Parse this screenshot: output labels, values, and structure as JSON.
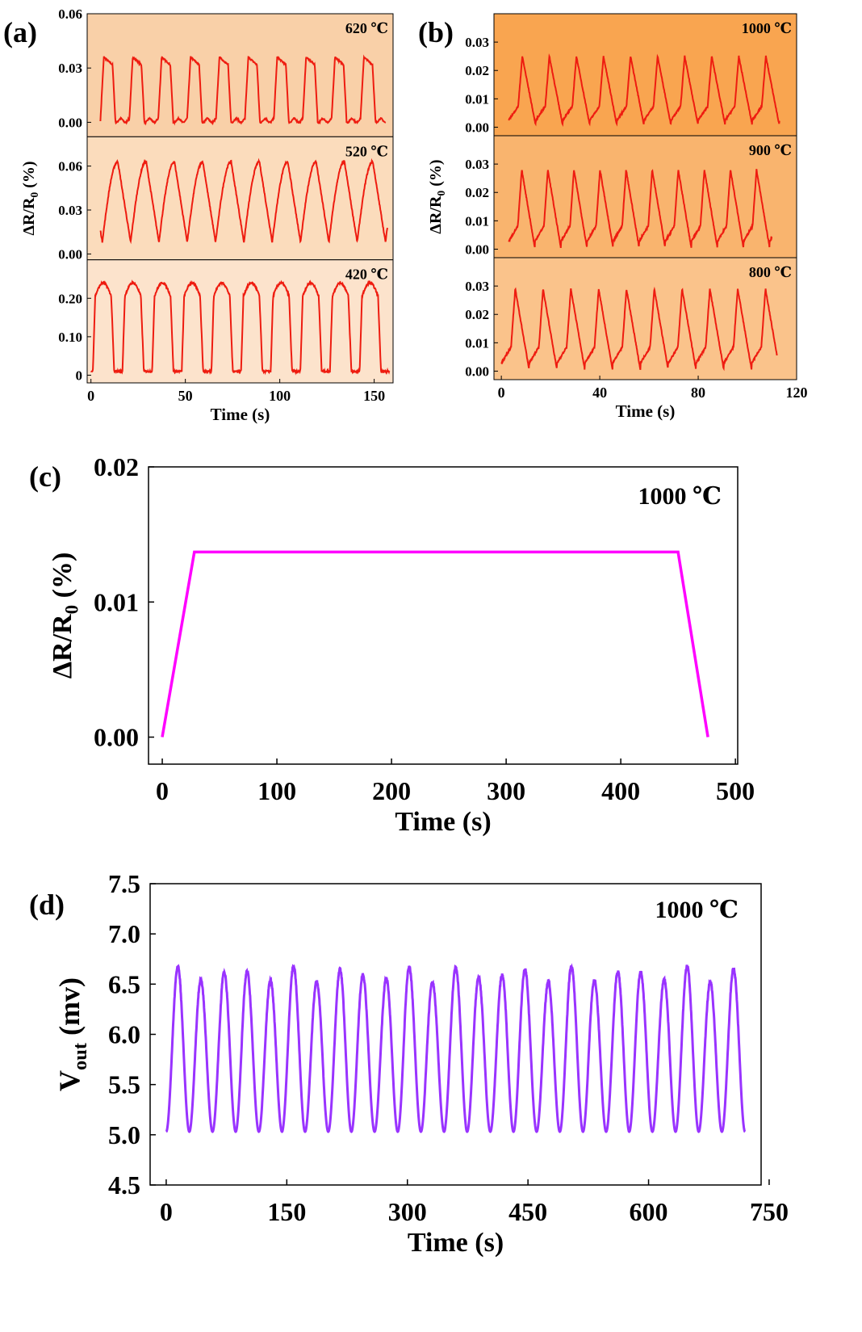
{
  "colors": {
    "trace_ab": "#ee1c10",
    "trace_c": "#ff00ff",
    "trace_d": "#9933ff",
    "bg_620": "#f9d0a8",
    "bg_520": "#fbdcbc",
    "bg_420": "#fce3cc",
    "bg_1000": "#f9a550",
    "bg_900": "#f9b46e",
    "bg_800": "#fac38b"
  },
  "chart_data": [
    {
      "panel": "(a)",
      "type": "line",
      "xlabel": "Time (s)",
      "ylabel": "ΔR/R0 (%)",
      "xlim": [
        -2,
        160
      ],
      "xticks": [
        "0",
        "50",
        "100",
        "150"
      ],
      "x_tick_values": [
        0,
        50,
        100,
        150
      ],
      "subplots": [
        {
          "id": "a-620",
          "label": "620 ℃",
          "ylim": [
            -0.008,
            0.06
          ],
          "yticks": [
            "0.00",
            "0.03",
            "0.06"
          ],
          "ytick_values": [
            0,
            0.03,
            0.06
          ],
          "start": 5,
          "end": 156,
          "period": 15.3,
          "peak": 0.036,
          "base": 0.001,
          "shape": "square",
          "x_start": 5
        },
        {
          "id": "a-520",
          "label": "520 ℃",
          "ylim": [
            -0.004,
            0.08
          ],
          "yticks": [
            "0.00",
            "0.03",
            "0.06"
          ],
          "ytick_values": [
            0,
            0.03,
            0.06
          ],
          "start": 5,
          "end": 157,
          "period": 15.0,
          "peak": 0.063,
          "base": 0.008,
          "shape": "saw",
          "x_start": 6
        },
        {
          "id": "a-420",
          "label": "420 ℃",
          "ylim": [
            -0.02,
            0.3
          ],
          "yticks": [
            "0",
            "0.10",
            "0.20"
          ],
          "ytick_values": [
            0,
            0.1,
            0.2
          ],
          "start": 0,
          "end": 158,
          "period": 15.7,
          "peak": 0.24,
          "base": 0.01,
          "shape": "round",
          "x_start": 1
        }
      ]
    },
    {
      "panel": "(b)",
      "type": "line",
      "xlabel": "Time (s)",
      "ylabel": "ΔR/R0 (%)",
      "xlim": [
        -3,
        120
      ],
      "xticks": [
        "0",
        "40",
        "80",
        "120"
      ],
      "x_tick_values": [
        0,
        40,
        80,
        120
      ],
      "subplots": [
        {
          "id": "b-1000",
          "label": "1000 ℃",
          "ylim": [
            -0.003,
            0.04
          ],
          "yticks": [
            "0.00",
            "0.01",
            "0.02",
            "0.03"
          ],
          "ytick_values": [
            0,
            0.01,
            0.02,
            0.03
          ],
          "start": 3,
          "end": 113,
          "period": 11.0,
          "peak": 0.025,
          "base": 0.0005,
          "shape": "spike",
          "x_start": 3
        },
        {
          "id": "b-900",
          "label": "900 ℃",
          "ylim": [
            -0.003,
            0.04
          ],
          "yticks": [
            "0.00",
            "0.01",
            "0.02",
            "0.03"
          ],
          "ytick_values": [
            0,
            0.01,
            0.02,
            0.03
          ],
          "start": 3,
          "end": 110,
          "period": 10.6,
          "peak": 0.028,
          "base": 0.0005,
          "shape": "spike",
          "x_start": 3
        },
        {
          "id": "b-800",
          "label": "800 ℃",
          "ylim": [
            -0.003,
            0.04
          ],
          "yticks": [
            "0.00",
            "0.01",
            "0.02",
            "0.03"
          ],
          "ytick_values": [
            0,
            0.01,
            0.02,
            0.03
          ],
          "start": 0,
          "end": 112,
          "period": 11.3,
          "peak": 0.029,
          "base": 0.0005,
          "shape": "spike",
          "x_start": 0
        }
      ]
    },
    {
      "panel": "(c)",
      "type": "line",
      "xlabel": "Time (s)",
      "ylabel": "ΔR/R0 (%)",
      "label": "1000 ℃",
      "xlim": [
        -12,
        502
      ],
      "ylim": [
        -0.002,
        0.02
      ],
      "xticks": [
        "0",
        "100",
        "200",
        "300",
        "400",
        "500"
      ],
      "x_tick_values": [
        0,
        100,
        200,
        300,
        400,
        500
      ],
      "yticks": [
        "0.00",
        "0.01",
        "0.02"
      ],
      "ytick_values": [
        0,
        0.01,
        0.02
      ],
      "x": [
        0,
        28,
        450,
        476
      ],
      "y": [
        0,
        0.0137,
        0.0137,
        0
      ]
    },
    {
      "panel": "(d)",
      "type": "line",
      "xlabel": "Time (s)",
      "ylabel": "Vout (mv)",
      "label": "1000 ℃",
      "xlim": [
        -20,
        740
      ],
      "ylim": [
        4.5,
        7.5
      ],
      "xticks": [
        "0",
        "150",
        "300",
        "450",
        "600",
        "750"
      ],
      "x_tick_values": [
        0,
        150,
        300,
        450,
        600,
        750
      ],
      "yticks": [
        "4.5",
        "5.0",
        "5.5",
        "6.0",
        "6.5",
        "7.0",
        "7.5"
      ],
      "ytick_values": [
        4.5,
        5.0,
        5.5,
        6.0,
        6.5,
        7.0,
        7.5
      ],
      "start": 0,
      "end": 720,
      "cycles": 25,
      "peak": 6.6,
      "base": 5.03
    }
  ],
  "text": {
    "label_a": "(a)",
    "label_b": "(b)",
    "label_c": "(c)",
    "label_d": "(d)"
  }
}
